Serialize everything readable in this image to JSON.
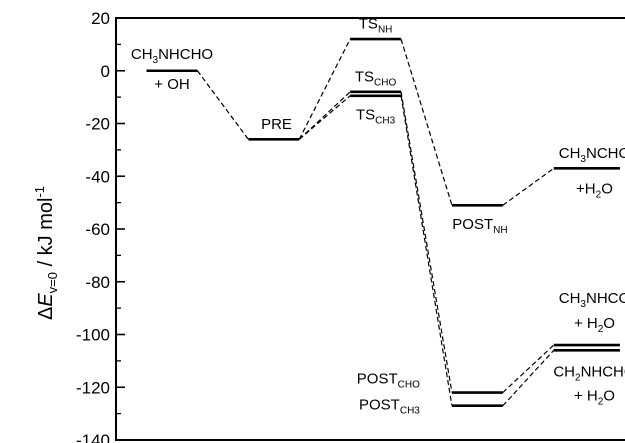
{
  "chart_data": {
    "type": "energy-level-diagram",
    "ylabel": {
      "prefix": "Δ",
      "symbol": "E",
      "subscript": "v=0",
      "unit": " / kJ mol",
      "unit_sup": "-1"
    },
    "ylim": [
      -140,
      20
    ],
    "yticks": [
      20,
      0,
      -20,
      -40,
      -60,
      -80,
      -100,
      -120,
      -140
    ],
    "grid": false,
    "levels": [
      {
        "id": "reactants",
        "value": 0,
        "x_from": 0.6,
        "x_to": 1.6
      },
      {
        "id": "pre",
        "value": -26,
        "x_from": 2.6,
        "x_to": 3.6
      },
      {
        "id": "ts_nh",
        "value": 12,
        "x_from": 4.6,
        "x_to": 5.6
      },
      {
        "id": "ts_cho",
        "value": -8,
        "x_from": 4.6,
        "x_to": 5.6
      },
      {
        "id": "ts_ch3",
        "value": -9.5,
        "x_from": 4.6,
        "x_to": 5.6
      },
      {
        "id": "post_nh",
        "value": -51,
        "x_from": 6.6,
        "x_to": 7.6
      },
      {
        "id": "prod_nh",
        "value": -37,
        "x_from": 8.6,
        "x_to": 9.9
      },
      {
        "id": "post_cho",
        "value": -122,
        "x_from": 6.6,
        "x_to": 7.6
      },
      {
        "id": "post_ch3",
        "value": -127,
        "x_from": 6.6,
        "x_to": 7.6
      },
      {
        "id": "prod_cho",
        "value": -104,
        "x_from": 8.6,
        "x_to": 9.9
      },
      {
        "id": "prod_ch3",
        "value": -106,
        "x_from": 8.6,
        "x_to": 9.9
      }
    ],
    "connections": [
      [
        "reactants",
        "pre"
      ],
      [
        "pre",
        "ts_nh"
      ],
      [
        "pre",
        "ts_cho"
      ],
      [
        "pre",
        "ts_ch3"
      ],
      [
        "ts_nh",
        "post_nh"
      ],
      [
        "post_nh",
        "prod_nh"
      ],
      [
        "ts_cho",
        "post_cho"
      ],
      [
        "ts_ch3",
        "post_ch3"
      ],
      [
        "post_cho",
        "prod_cho"
      ],
      [
        "post_ch3",
        "prod_ch3"
      ]
    ],
    "labels": [
      {
        "id": "reactants-label-1",
        "x": 1.1,
        "y": 4.5,
        "parts": [
          [
            "CH",
            "n"
          ],
          [
            "3",
            "sub"
          ],
          [
            "NHCHO",
            "n"
          ]
        ]
      },
      {
        "id": "reactants-label-2",
        "x": 1.1,
        "y": -7,
        "parts": [
          [
            "+ OH",
            "n"
          ]
        ]
      },
      {
        "id": "pre-label",
        "x": 2.85,
        "y": -22,
        "parts": [
          [
            "PRE",
            "n"
          ]
        ]
      },
      {
        "id": "ts-nh-label",
        "x": 5.1,
        "y": 16,
        "parts": [
          [
            "TS",
            "n"
          ],
          [
            "NH",
            "sub"
          ]
        ]
      },
      {
        "id": "ts-cho-label",
        "x": 5.1,
        "y": -4,
        "parts": [
          [
            "TS",
            "n"
          ],
          [
            "CHO",
            "sub"
          ]
        ]
      },
      {
        "id": "ts-ch3-label",
        "x": 5.1,
        "y": -18.5,
        "parts": [
          [
            "TS",
            "n"
          ],
          [
            "CH3",
            "sub"
          ]
        ]
      },
      {
        "id": "post-nh-label",
        "x": 7.15,
        "y": -60,
        "parts": [
          [
            "POST",
            "n"
          ],
          [
            "NH",
            "sub"
          ]
        ]
      },
      {
        "id": "prod-nh-label-1",
        "x": 9.4,
        "y": -33,
        "parts": [
          [
            "CH",
            "n"
          ],
          [
            "3",
            "sub"
          ],
          [
            "NCHO",
            "n"
          ]
        ]
      },
      {
        "id": "prod-nh-label-2",
        "x": 9.4,
        "y": -46.5,
        "parts": [
          [
            "+H",
            "n"
          ],
          [
            "2",
            "sub"
          ],
          [
            "O",
            "n"
          ]
        ]
      },
      {
        "id": "prod-cho-label-1",
        "x": 9.4,
        "y": -88,
        "parts": [
          [
            "CH",
            "n"
          ],
          [
            "3",
            "sub"
          ],
          [
            "NHCO",
            "n"
          ]
        ]
      },
      {
        "id": "prod-cho-label-2",
        "x": 9.4,
        "y": -97.5,
        "parts": [
          [
            "+ H",
            "n"
          ],
          [
            "2",
            "sub"
          ],
          [
            "O",
            "n"
          ]
        ]
      },
      {
        "id": "prod-ch3-label-1",
        "x": 9.4,
        "y": -116,
        "parts": [
          [
            "CH",
            "n"
          ],
          [
            "2",
            "sub"
          ],
          [
            "NHCHO",
            "n"
          ]
        ]
      },
      {
        "id": "prod-ch3-label-2",
        "x": 9.4,
        "y": -125,
        "parts": [
          [
            "+ H",
            "n"
          ],
          [
            "2",
            "sub"
          ],
          [
            "O",
            "n"
          ]
        ]
      },
      {
        "id": "post-cho-label",
        "x": 5.97,
        "y": -118.5,
        "parts": [
          [
            "POST",
            "n"
          ],
          [
            "CHO",
            "sub"
          ]
        ]
      },
      {
        "id": "post-ch3-label",
        "x": 5.97,
        "y": -128.5,
        "parts": [
          [
            "POST",
            "n"
          ],
          [
            "CH3",
            "sub"
          ]
        ]
      }
    ],
    "label_anchor": {
      "pre-label": "start",
      "post-cho-label": "end",
      "post-ch3-label": "end",
      "post-nh-label": "middle"
    }
  }
}
